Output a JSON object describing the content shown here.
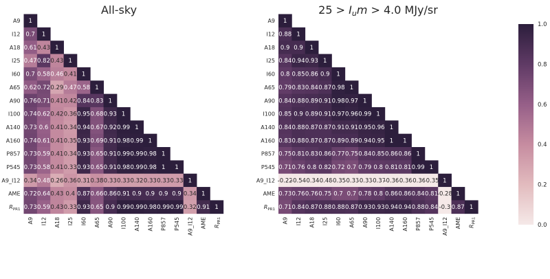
{
  "chart_data": [
    {
      "type": "heatmap",
      "title": "All-sky",
      "labels": [
        "A9",
        "I12",
        "A18",
        "I25",
        "I60",
        "A65",
        "A90",
        "I100",
        "A140",
        "A160",
        "P857",
        "P545",
        "A9_I12",
        "AME",
        "R_PR1"
      ],
      "rows": [
        [
          1
        ],
        [
          0.7,
          1
        ],
        [
          0.61,
          0.43,
          1
        ],
        [
          0.47,
          0.82,
          0.43,
          1
        ],
        [
          0.7,
          0.58,
          0.46,
          0.41,
          1
        ],
        [
          0.62,
          0.72,
          0.29,
          0.47,
          0.58,
          1
        ],
        [
          0.76,
          0.71,
          0.41,
          0.42,
          0.84,
          0.83,
          1
        ],
        [
          0.74,
          0.62,
          0.42,
          0.36,
          0.95,
          0.68,
          0.93,
          1
        ],
        [
          0.73,
          0.6,
          0.41,
          0.34,
          0.94,
          0.67,
          0.92,
          0.99,
          1
        ],
        [
          0.74,
          0.61,
          0.41,
          0.35,
          0.93,
          0.69,
          0.91,
          0.98,
          0.99,
          1
        ],
        [
          0.73,
          0.59,
          0.41,
          0.34,
          0.93,
          0.65,
          0.91,
          0.99,
          0.99,
          0.98,
          1
        ],
        [
          0.73,
          0.58,
          0.41,
          0.33,
          0.93,
          0.65,
          0.91,
          0.98,
          0.99,
          0.98,
          1,
          1
        ],
        [
          0.34,
          0.48,
          0.26,
          0.36,
          0.31,
          0.38,
          0.33,
          0.33,
          0.32,
          0.33,
          0.33,
          0.33,
          1
        ],
        [
          0.72,
          0.64,
          0.43,
          0.4,
          0.87,
          0.66,
          0.86,
          0.91,
          0.9,
          0.9,
          0.9,
          0.9,
          0.34,
          1
        ],
        [
          0.73,
          0.59,
          0.43,
          0.33,
          0.93,
          0.65,
          0.9,
          0.99,
          0.99,
          0.98,
          0.99,
          0.99,
          0.32,
          0.91,
          1
        ]
      ]
    },
    {
      "type": "heatmap",
      "title": "25 > I_u m > 4.0 MJy/sr",
      "labels": [
        "A9",
        "I12",
        "A18",
        "I25",
        "I60",
        "A65",
        "A90",
        "I100",
        "A140",
        "A160",
        "P857",
        "P545",
        "A9_I12",
        "AME",
        "R_PR1"
      ],
      "rows": [
        [
          1
        ],
        [
          0.88,
          1
        ],
        [
          0.9,
          0.9,
          1
        ],
        [
          0.84,
          0.94,
          0.93,
          1
        ],
        [
          0.8,
          0.85,
          0.86,
          0.9,
          1
        ],
        [
          0.79,
          0.83,
          0.84,
          0.87,
          0.98,
          1
        ],
        [
          0.84,
          0.88,
          0.89,
          0.91,
          0.98,
          0.97,
          1
        ],
        [
          0.85,
          0.9,
          0.89,
          0.91,
          0.97,
          0.96,
          0.99,
          1
        ],
        [
          0.84,
          0.88,
          0.87,
          0.87,
          0.91,
          0.91,
          0.95,
          0.96,
          1
        ],
        [
          0.83,
          0.88,
          0.87,
          0.87,
          0.89,
          0.89,
          0.94,
          0.95,
          1,
          1
        ],
        [
          0.75,
          0.81,
          0.83,
          0.86,
          0.77,
          0.75,
          0.84,
          0.85,
          0.86,
          0.86,
          1
        ],
        [
          0.71,
          0.76,
          0.8,
          0.82,
          0.72,
          0.7,
          0.79,
          0.8,
          0.81,
          0.81,
          0.99,
          1
        ],
        [
          -0.22,
          -0.54,
          -0.34,
          -0.48,
          -0.35,
          -0.33,
          -0.33,
          -0.37,
          -0.36,
          -0.36,
          -0.36,
          -0.35,
          1
        ],
        [
          0.73,
          0.76,
          0.76,
          0.75,
          0.7,
          0.7,
          0.78,
          0.8,
          0.86,
          0.86,
          0.84,
          0.81,
          -0.28,
          1
        ],
        [
          0.71,
          0.84,
          0.87,
          0.88,
          0.88,
          0.87,
          0.93,
          0.93,
          0.94,
          0.94,
          0.88,
          0.84,
          -0.3,
          0.87,
          1
        ]
      ]
    }
  ],
  "colorbar": {
    "ticks": [
      "0.0",
      "0.2",
      "0.4",
      "0.6",
      "0.8",
      "1.0"
    ],
    "range": [
      0,
      1
    ],
    "color_low": "#f5e9e8",
    "color_high": "#2c1e3c"
  }
}
